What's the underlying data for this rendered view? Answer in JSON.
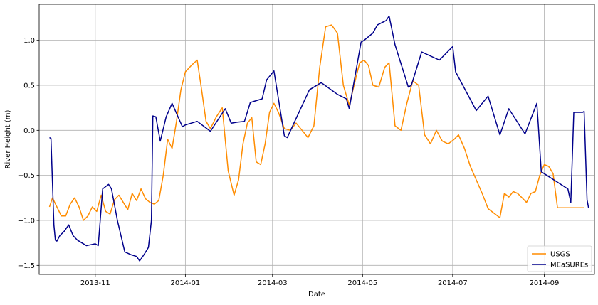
{
  "chart_data": {
    "type": "line",
    "xlabel": "Date",
    "ylabel": "River Height (m)",
    "xaxis_type": "date",
    "xlim": [
      "2013-09-24",
      "2014-10-05"
    ],
    "ylim": [
      -1.6,
      1.4
    ],
    "grid": true,
    "legend_position": "lower right",
    "x_ticks": [
      {
        "value": "2013-11-01",
        "label": "2013-11"
      },
      {
        "value": "2014-01-01",
        "label": "2014-01"
      },
      {
        "value": "2014-03-01",
        "label": "2014-03"
      },
      {
        "value": "2014-05-01",
        "label": "2014-05"
      },
      {
        "value": "2014-07-01",
        "label": "2014-07"
      },
      {
        "value": "2014-09-01",
        "label": "2014-09"
      }
    ],
    "y_ticks": [
      {
        "value": -1.5,
        "label": "−1.5"
      },
      {
        "value": -1.0,
        "label": "−1.0"
      },
      {
        "value": -0.5,
        "label": "−0.5"
      },
      {
        "value": 0.0,
        "label": "0.0"
      },
      {
        "value": 0.5,
        "label": "0.5"
      },
      {
        "value": 1.0,
        "label": "1.0"
      }
    ],
    "series": [
      {
        "name": "USGS",
        "color": "#ff8c00",
        "x": [
          "2013-10-01",
          "2013-10-03",
          "2013-10-06",
          "2013-10-09",
          "2013-10-12",
          "2013-10-15",
          "2013-10-18",
          "2013-10-21",
          "2013-10-24",
          "2013-10-27",
          "2013-10-30",
          "2013-11-02",
          "2013-11-05",
          "2013-11-08",
          "2013-11-11",
          "2013-11-14",
          "2013-11-17",
          "2013-11-20",
          "2013-11-23",
          "2013-11-26",
          "2013-11-29",
          "2013-12-02",
          "2013-12-05",
          "2013-12-08",
          "2013-12-11",
          "2013-12-14",
          "2013-12-17",
          "2013-12-20",
          "2013-12-23",
          "2013-12-26",
          "2013-12-29",
          "2014-01-01",
          "2014-01-05",
          "2014-01-09",
          "2014-01-12",
          "2014-01-15",
          "2014-01-18",
          "2014-01-22",
          "2014-01-26",
          "2014-01-30",
          "2014-02-03",
          "2014-02-06",
          "2014-02-09",
          "2014-02-12",
          "2014-02-15",
          "2014-02-18",
          "2014-02-21",
          "2014-02-24",
          "2014-02-27",
          "2014-03-02",
          "2014-03-05",
          "2014-03-09",
          "2014-03-13",
          "2014-03-17",
          "2014-03-21",
          "2014-03-25",
          "2014-03-29",
          "2014-04-02",
          "2014-04-06",
          "2014-04-10",
          "2014-04-14",
          "2014-04-18",
          "2014-04-22",
          "2014-04-26",
          "2014-04-29",
          "2014-05-02",
          "2014-05-05",
          "2014-05-08",
          "2014-05-12",
          "2014-05-16",
          "2014-05-19",
          "2014-05-23",
          "2014-05-27",
          "2014-05-31",
          "2014-06-04",
          "2014-06-08",
          "2014-06-12",
          "2014-06-16",
          "2014-06-20",
          "2014-06-24",
          "2014-06-28",
          "2014-07-02",
          "2014-07-05",
          "2014-07-09",
          "2014-07-13",
          "2014-07-17",
          "2014-07-21",
          "2014-07-25",
          "2014-07-29",
          "2014-08-02",
          "2014-08-05",
          "2014-08-08",
          "2014-08-11",
          "2014-08-14",
          "2014-08-17",
          "2014-08-20",
          "2014-08-23",
          "2014-08-26",
          "2014-08-29",
          "2014-09-01",
          "2014-09-04",
          "2014-09-07",
          "2014-09-10",
          "2014-09-13",
          "2014-09-16",
          "2014-09-19",
          "2014-09-22",
          "2014-09-25",
          "2014-09-28"
        ],
        "y": [
          -0.85,
          -0.75,
          -0.85,
          -0.95,
          -0.95,
          -0.82,
          -0.75,
          -0.85,
          -1.0,
          -0.95,
          -0.85,
          -0.9,
          -0.72,
          -0.9,
          -0.93,
          -0.77,
          -0.72,
          -0.8,
          -0.88,
          -0.7,
          -0.78,
          -0.65,
          -0.76,
          -0.8,
          -0.82,
          -0.78,
          -0.5,
          -0.1,
          -0.2,
          0.1,
          0.45,
          0.65,
          0.72,
          0.78,
          0.45,
          0.1,
          0.02,
          0.15,
          0.25,
          -0.45,
          -0.72,
          -0.55,
          -0.15,
          0.08,
          0.14,
          -0.35,
          -0.38,
          -0.15,
          0.2,
          0.3,
          0.2,
          0.02,
          0.0,
          0.08,
          0.0,
          -0.08,
          0.05,
          0.7,
          1.15,
          1.17,
          1.08,
          0.5,
          0.28,
          0.55,
          0.75,
          0.78,
          0.72,
          0.5,
          0.48,
          0.7,
          0.75,
          0.05,
          0.0,
          0.3,
          0.55,
          0.5,
          -0.05,
          -0.15,
          0.0,
          -0.12,
          -0.15,
          -0.1,
          -0.05,
          -0.2,
          -0.4,
          -0.55,
          -0.7,
          -0.87,
          -0.92,
          -0.97,
          -0.7,
          -0.74,
          -0.68,
          -0.7,
          -0.75,
          -0.8,
          -0.7,
          -0.68,
          -0.5,
          -0.38,
          -0.4,
          -0.48,
          -0.86,
          -0.86,
          -0.86,
          -0.86,
          -0.86,
          -0.86,
          -0.86
        ],
        "y_note": ""
      },
      {
        "name": "MEaSUREs",
        "color": "#00008b",
        "x": [
          "2013-10-01",
          "2013-10-02",
          "2013-10-04",
          "2013-10-05",
          "2013-10-06",
          "2013-10-08",
          "2013-10-11",
          "2013-10-14",
          "2013-10-17",
          "2013-10-20",
          "2013-10-23",
          "2013-10-26",
          "2013-10-29",
          "2013-11-01",
          "2013-11-03",
          "2013-11-06",
          "2013-11-10",
          "2013-11-12",
          "2013-11-16",
          "2013-11-21",
          "2013-11-25",
          "2013-11-29",
          "2013-12-01",
          "2013-12-04",
          "2013-12-07",
          "2013-12-09",
          "2013-12-10",
          "2013-12-12",
          "2013-12-15",
          "2013-12-19",
          "2013-12-23",
          "2013-12-30",
          "2014-01-01",
          "2014-01-09",
          "2014-01-18",
          "2014-01-28",
          "2014-02-01",
          "2014-02-05",
          "2014-02-10",
          "2014-02-14",
          "2014-02-22",
          "2014-02-25",
          "2014-02-28",
          "2014-03-02",
          "2014-03-09",
          "2014-03-11",
          "2014-03-26",
          "2014-04-03",
          "2014-04-14",
          "2014-04-20",
          "2014-04-22",
          "2014-04-30",
          "2014-05-02",
          "2014-05-08",
          "2014-05-11",
          "2014-05-17",
          "2014-05-19",
          "2014-05-23",
          "2014-06-01",
          "2014-06-03",
          "2014-06-10",
          "2014-06-22",
          "2014-07-01",
          "2014-07-03",
          "2014-07-17",
          "2014-07-25",
          "2014-08-02",
          "2014-08-08",
          "2014-08-19",
          "2014-08-27",
          "2014-08-28",
          "2014-08-30",
          "2014-09-17",
          "2014-09-19",
          "2014-09-21",
          "2014-09-27",
          "2014-09-28",
          "2014-09-30",
          "2014-10-01"
        ],
        "y": [
          -0.08,
          -0.09,
          -1.05,
          -1.22,
          -1.23,
          -1.17,
          -1.12,
          -1.05,
          -1.17,
          -1.22,
          -1.25,
          -1.28,
          -1.27,
          -1.26,
          -1.28,
          -0.65,
          -0.6,
          -0.65,
          -1.0,
          -1.35,
          -1.38,
          -1.4,
          -1.45,
          -1.38,
          -1.3,
          -1.0,
          0.16,
          0.15,
          -0.12,
          0.15,
          0.3,
          0.04,
          0.06,
          0.1,
          -0.01,
          0.24,
          0.08,
          0.09,
          0.1,
          0.31,
          0.35,
          0.56,
          0.62,
          0.66,
          -0.06,
          -0.08,
          0.45,
          0.53,
          0.4,
          0.35,
          0.24,
          0.98,
          1.0,
          1.08,
          1.17,
          1.22,
          1.27,
          0.95,
          0.48,
          0.5,
          0.87,
          0.78,
          0.93,
          0.65,
          0.22,
          0.38,
          -0.05,
          0.24,
          -0.04,
          0.3,
          0.05,
          -0.46,
          -0.65,
          -0.8,
          0.2,
          0.2,
          0.21,
          -0.77,
          -0.86
        ]
      }
    ]
  }
}
